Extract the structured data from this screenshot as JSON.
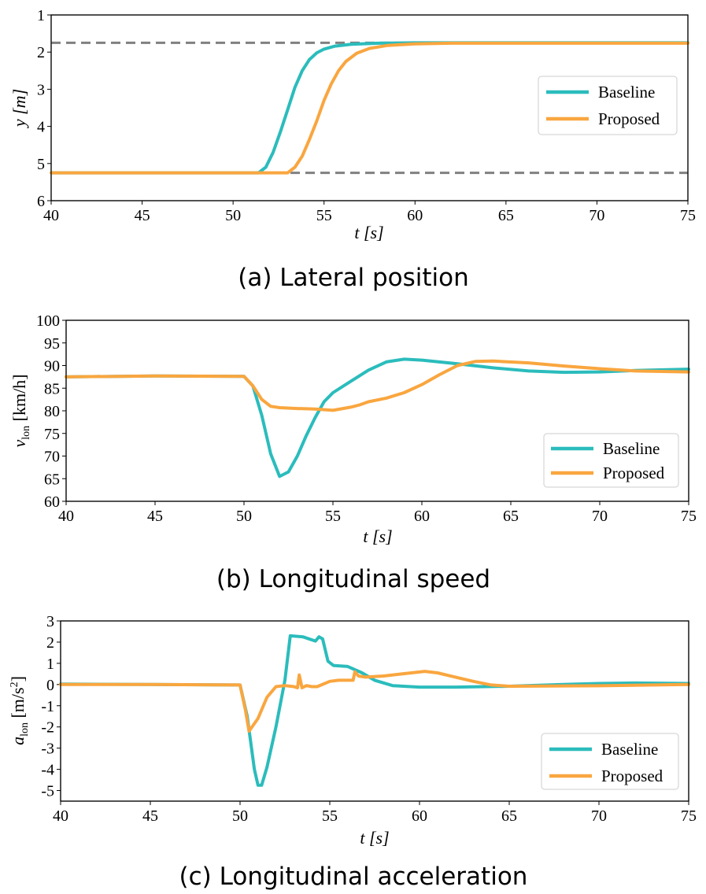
{
  "colors": {
    "baseline": "#2bbcbc",
    "proposed": "#f9a63f",
    "reference": "#808080"
  },
  "chart_data": [
    {
      "type": "line",
      "id": "a",
      "caption": "(a) Lateral position",
      "xlabel": "t [s]",
      "ylabel": "y [m]",
      "xlim": [
        40,
        75
      ],
      "ylim": [
        6,
        1
      ],
      "yinverted": true,
      "xticks": [
        "40",
        "45",
        "50",
        "55",
        "60",
        "65",
        "70",
        "75"
      ],
      "yticks": [
        "1",
        "2",
        "3",
        "4",
        "5",
        "6"
      ],
      "legend": [
        "Baseline",
        "Proposed"
      ],
      "legend_position": "center-right",
      "reference_lines": [
        1.75,
        5.25
      ],
      "series": [
        {
          "name": "Baseline",
          "x": [
            40,
            51.4,
            51.8,
            52.2,
            52.6,
            53.0,
            53.4,
            53.8,
            54.2,
            54.6,
            55,
            55.6,
            56.5,
            58,
            60,
            75
          ],
          "y": [
            5.25,
            5.25,
            5.1,
            4.7,
            4.15,
            3.55,
            2.95,
            2.5,
            2.2,
            2.02,
            1.92,
            1.84,
            1.79,
            1.76,
            1.75,
            1.75
          ]
        },
        {
          "name": "Proposed",
          "x": [
            40,
            53,
            53.4,
            53.8,
            54.2,
            54.6,
            55,
            55.4,
            55.8,
            56.2,
            56.8,
            57.5,
            58.5,
            60,
            62,
            75
          ],
          "y": [
            5.25,
            5.25,
            5.1,
            4.8,
            4.35,
            3.85,
            3.3,
            2.85,
            2.5,
            2.25,
            2.03,
            1.9,
            1.82,
            1.78,
            1.76,
            1.76
          ]
        }
      ]
    },
    {
      "type": "line",
      "id": "b",
      "caption": "(b) Longitudinal speed",
      "xlabel": "t [s]",
      "ylabel": "v_lon [km/h]",
      "ylabel_main": "v",
      "ylabel_sub": "lon",
      "ylabel_unit": " [km/h]",
      "xlim": [
        40,
        75
      ],
      "ylim": [
        60,
        100
      ],
      "xticks": [
        "40",
        "45",
        "50",
        "55",
        "60",
        "65",
        "70",
        "75"
      ],
      "yticks": [
        "60",
        "65",
        "70",
        "75",
        "80",
        "85",
        "90",
        "95",
        "100"
      ],
      "legend": [
        "Baseline",
        "Proposed"
      ],
      "legend_position": "lower-right",
      "series": [
        {
          "name": "Baseline",
          "x": [
            40,
            45,
            50,
            50.5,
            51,
            51.5,
            52,
            52.5,
            53,
            53.5,
            54,
            54.5,
            55,
            56,
            57,
            58,
            59,
            60,
            62,
            64,
            66,
            68,
            70,
            72,
            75
          ],
          "y": [
            87.5,
            87.7,
            87.6,
            85.5,
            79,
            70.5,
            65.5,
            66.5,
            70,
            74.5,
            78.5,
            82,
            84,
            86.5,
            89,
            90.8,
            91.4,
            91.2,
            90.4,
            89.5,
            88.8,
            88.5,
            88.6,
            88.9,
            89.2
          ]
        },
        {
          "name": "Proposed",
          "x": [
            40,
            45,
            50,
            50.5,
            51,
            51.5,
            52,
            53,
            54,
            55,
            56,
            56.5,
            57,
            58,
            59,
            60,
            61,
            62,
            63,
            64,
            66,
            68,
            70,
            72,
            75
          ],
          "y": [
            87.5,
            87.7,
            87.6,
            85.5,
            82.5,
            81,
            80.7,
            80.5,
            80.4,
            80.1,
            80.8,
            81.3,
            82,
            82.8,
            84,
            85.8,
            88,
            90,
            90.9,
            91,
            90.6,
            89.9,
            89.3,
            88.8,
            88.6
          ]
        }
      ]
    },
    {
      "type": "line",
      "id": "c",
      "caption": "(c) Longitudinal acceleration",
      "xlabel": "t [s]",
      "ylabel": "a_lon [m/s^2]",
      "ylabel_main": "a",
      "ylabel_sub": "lon",
      "ylabel_unit_a": " [m/s",
      "ylabel_sup": "2",
      "ylabel_unit_b": "]",
      "xlim": [
        40,
        75
      ],
      "ylim": [
        -5.5,
        3
      ],
      "xticks": [
        "40",
        "45",
        "50",
        "55",
        "60",
        "65",
        "70",
        "75"
      ],
      "yticks": [
        "-5",
        "-4",
        "-3",
        "-2",
        "-1",
        "0",
        "1",
        "2",
        "3"
      ],
      "legend": [
        "Baseline",
        "Proposed"
      ],
      "legend_position": "lower-right",
      "series": [
        {
          "name": "Baseline",
          "x": [
            40,
            45,
            50,
            50.4,
            50.8,
            51.0,
            51.2,
            51.5,
            52.0,
            52.5,
            52.8,
            53.5,
            54.2,
            54.4,
            54.6,
            54.9,
            55.2,
            56,
            56.8,
            57.5,
            58.5,
            60,
            62,
            65,
            68,
            70,
            72,
            75
          ],
          "y": [
            0.02,
            0.0,
            -0.02,
            -1.5,
            -4.0,
            -4.75,
            -4.75,
            -3.9,
            -2.0,
            0.2,
            2.3,
            2.25,
            2.05,
            2.25,
            2.15,
            1.1,
            0.9,
            0.85,
            0.55,
            0.2,
            -0.05,
            -0.12,
            -0.12,
            -0.08,
            0.0,
            0.05,
            0.07,
            0.05
          ]
        },
        {
          "name": "Proposed",
          "x": [
            40,
            45,
            50,
            50.3,
            50.5,
            51.0,
            51.5,
            52.0,
            52.5,
            53.0,
            53.2,
            53.3,
            53.45,
            53.7,
            54.0,
            54.3,
            55.0,
            55.5,
            56.3,
            56.4,
            56.6,
            57,
            58,
            59,
            60.3,
            61,
            62,
            63,
            64,
            65,
            70,
            75
          ],
          "y": [
            0.0,
            0.0,
            -0.02,
            -1.2,
            -2.2,
            -1.6,
            -0.6,
            -0.1,
            -0.05,
            -0.1,
            -0.15,
            0.45,
            -0.15,
            -0.05,
            -0.1,
            -0.1,
            0.15,
            0.2,
            0.2,
            0.6,
            0.4,
            0.35,
            0.4,
            0.5,
            0.62,
            0.55,
            0.35,
            0.15,
            -0.02,
            -0.08,
            -0.06,
            0.0
          ]
        }
      ]
    }
  ]
}
